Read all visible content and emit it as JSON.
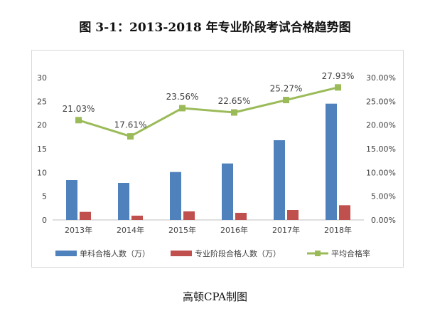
{
  "title": "图 3-1：2013-2018 年专业阶段考试合格趋势图",
  "credit": "高顿CPA制图",
  "colors": {
    "series1": "#4f81bd",
    "series2": "#c0504d",
    "series3": "#9bbb59"
  },
  "chart_data": {
    "type": "bar",
    "categories": [
      "2013年",
      "2014年",
      "2015年",
      "2016年",
      "2017年",
      "2018年"
    ],
    "series": [
      {
        "name": "单科合格人数（万）",
        "type": "bar",
        "axis": "left",
        "values": [
          8.4,
          7.8,
          10.1,
          11.9,
          16.8,
          24.5
        ]
      },
      {
        "name": "专业阶段合格人数（万）",
        "type": "bar",
        "axis": "left",
        "values": [
          1.7,
          0.9,
          1.8,
          1.5,
          2.1,
          3.1
        ]
      },
      {
        "name": "平均合格率",
        "type": "line",
        "axis": "right",
        "values": [
          21.03,
          17.61,
          23.56,
          22.65,
          25.27,
          27.93
        ],
        "labels": [
          "21.03%",
          "17.61%",
          "23.56%",
          "22.65%",
          "25.27%",
          "27.93%"
        ]
      }
    ],
    "y_left": {
      "min": 0,
      "max": 30,
      "ticks": [
        "0",
        "5",
        "10",
        "15",
        "20",
        "25",
        "30"
      ]
    },
    "y_right": {
      "min": 0,
      "max": 30,
      "ticks": [
        "0.00%",
        "5.00%",
        "10.00%",
        "15.00%",
        "20.00%",
        "25.00%",
        "30.00%"
      ]
    },
    "grid": false,
    "legend_position": "bottom"
  }
}
